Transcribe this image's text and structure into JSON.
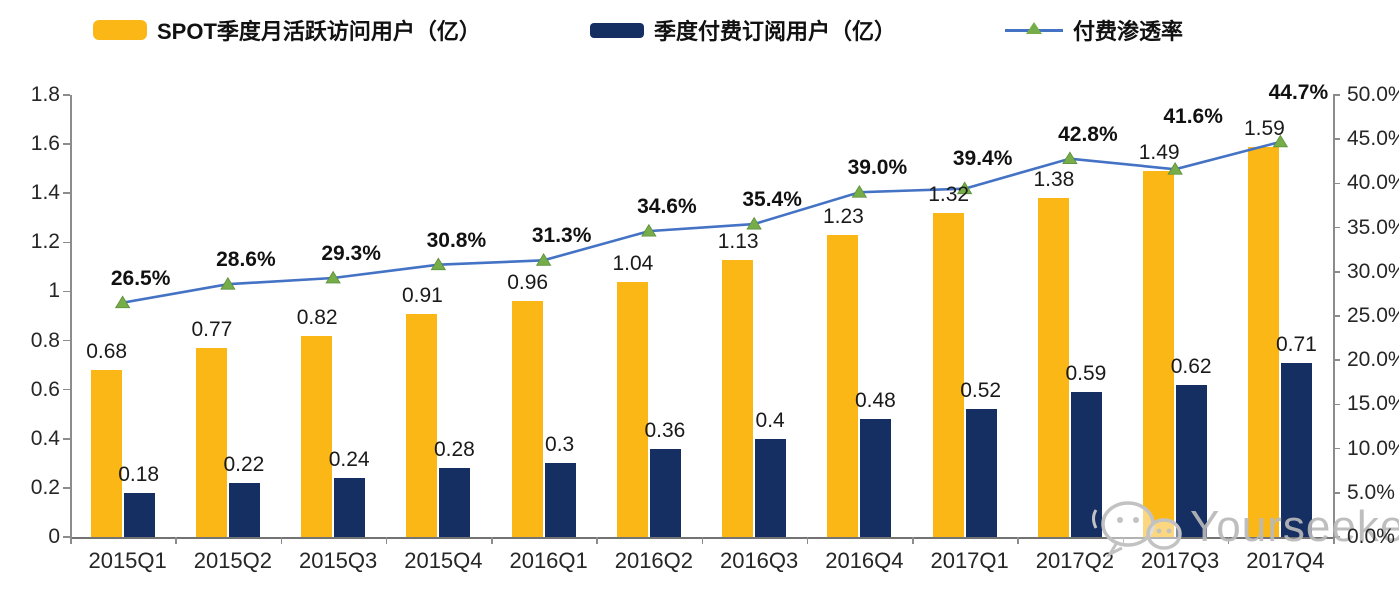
{
  "chart_data": {
    "type": "combo",
    "legend_position": "top",
    "grid": false,
    "categories": [
      "2015Q1",
      "2015Q2",
      "2015Q3",
      "2015Q4",
      "2016Q1",
      "2016Q2",
      "2016Q3",
      "2016Q4",
      "2017Q1",
      "2017Q2",
      "2017Q3",
      "2017Q4"
    ],
    "series": [
      {
        "name": "SPOT季度月活跃访问用户（亿）",
        "type": "bar",
        "axis": "left",
        "color": "#FBB716",
        "values": [
          0.68,
          0.77,
          0.82,
          0.91,
          0.96,
          1.04,
          1.13,
          1.23,
          1.32,
          1.38,
          1.49,
          1.59
        ],
        "labels": [
          "0.68",
          "0.77",
          "0.82",
          "0.91",
          "0.96",
          "1.04",
          "1.13",
          "1.23",
          "1.32",
          "1.38",
          "1.49",
          "1.59"
        ]
      },
      {
        "name": "季度付费订阅用户（亿）",
        "type": "bar",
        "axis": "left",
        "color": "#152F63",
        "values": [
          0.18,
          0.22,
          0.24,
          0.28,
          0.3,
          0.36,
          0.4,
          0.48,
          0.52,
          0.59,
          0.62,
          0.71
        ],
        "labels": [
          "0.18",
          "0.22",
          "0.24",
          "0.28",
          "0.3",
          "0.36",
          "0.4",
          "0.48",
          "0.52",
          "0.59",
          "0.62",
          "0.71"
        ]
      },
      {
        "name": "付费渗透率",
        "type": "line",
        "axis": "right",
        "color": "#4472C4",
        "marker": "triangle",
        "marker_color": "#76AD49",
        "values": [
          26.5,
          28.6,
          29.3,
          30.8,
          31.3,
          34.6,
          35.4,
          39.0,
          39.4,
          42.8,
          41.6,
          44.7
        ],
        "labels": [
          "26.5%",
          "28.6%",
          "29.3%",
          "30.8%",
          "31.3%",
          "34.6%",
          "35.4%",
          "39.0%",
          "39.4%",
          "42.8%",
          "41.6%",
          "44.7%"
        ]
      }
    ],
    "left_axis": {
      "min": 0,
      "max": 1.8,
      "step": 0.2,
      "tick_labels": [
        "0",
        "0.2",
        "0.4",
        "0.6",
        "0.8",
        "1",
        "1.2",
        "1.4",
        "1.6",
        "1.8"
      ]
    },
    "right_axis": {
      "min": 0,
      "max": 50,
      "step": 5,
      "tick_labels": [
        "0.0%",
        "5.0%",
        "10.0%",
        "15.0%",
        "20.0%",
        "25.0%",
        "30.0%",
        "35.0%",
        "40.0%",
        "45.0%",
        "50.0%"
      ]
    }
  },
  "watermark": {
    "text": "Yourseeker",
    "icon": "wechat-chat-bubbles"
  }
}
